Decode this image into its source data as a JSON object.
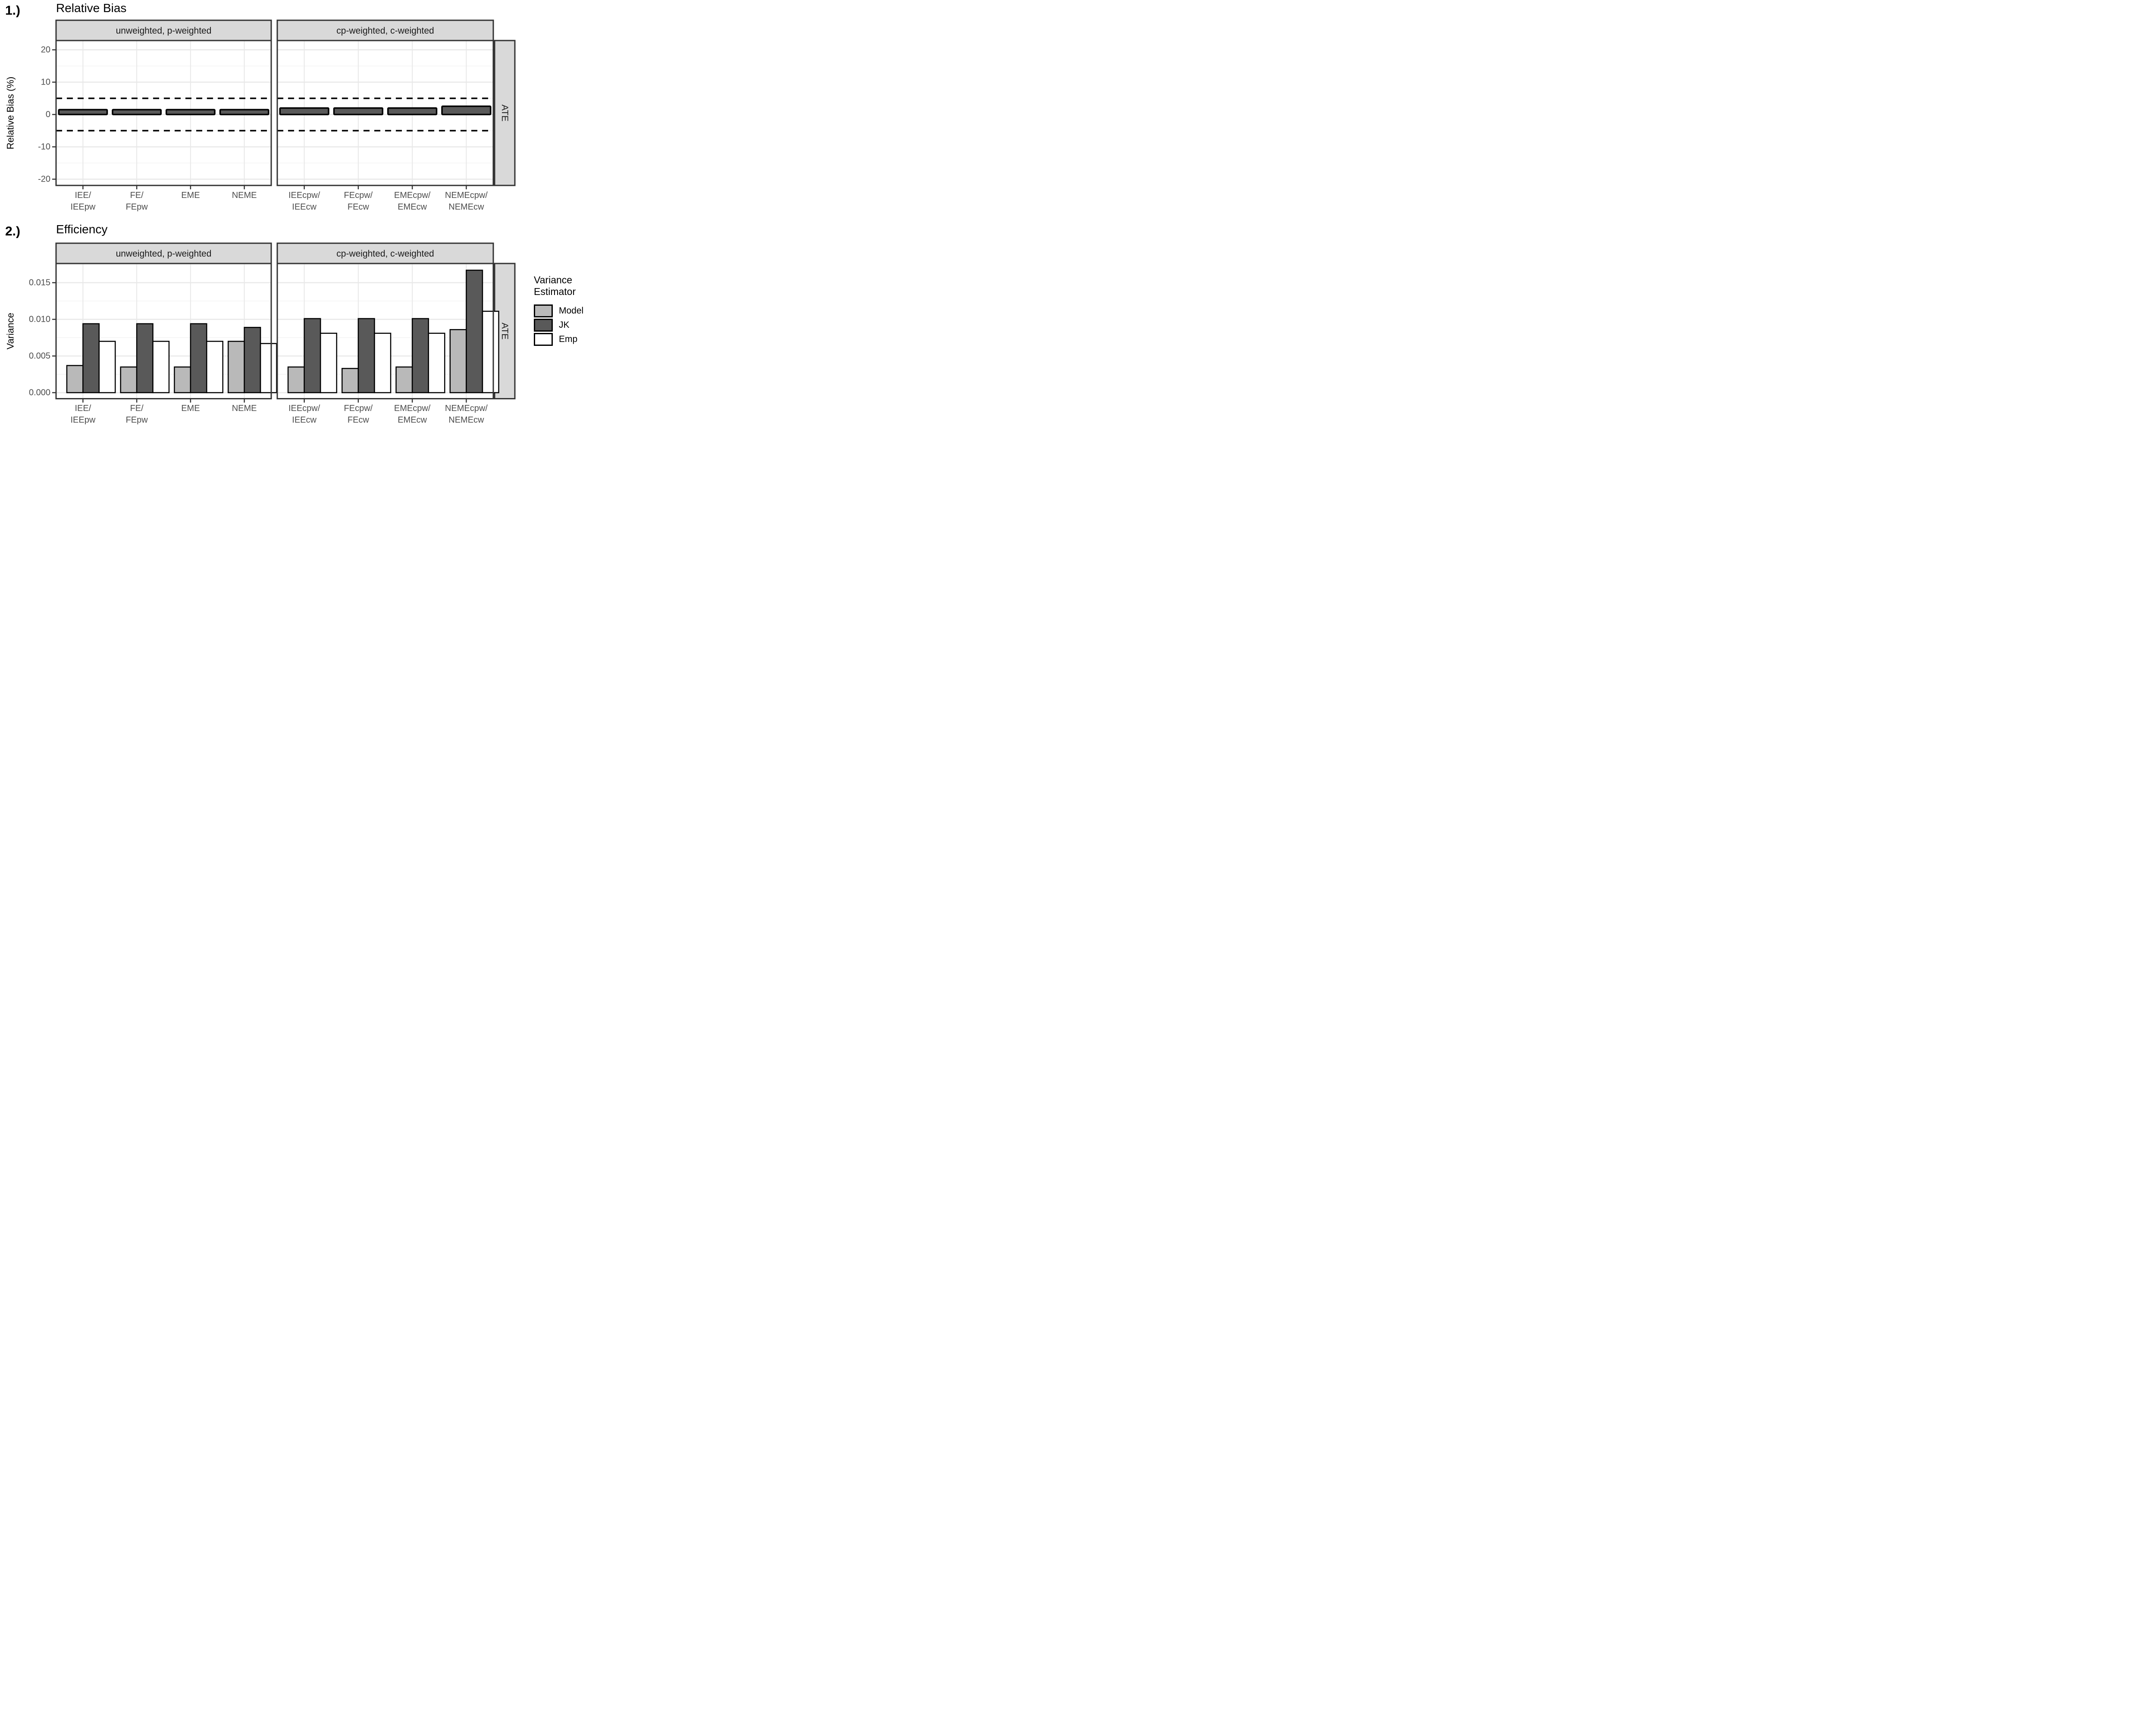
{
  "sections": [
    {
      "number_label": "1.)",
      "title": "Relative Bias"
    },
    {
      "number_label": "2.)",
      "title": "Efficiency"
    }
  ],
  "legend": {
    "title_lines": [
      "Variance",
      "Estimator"
    ],
    "items": [
      {
        "label": "Model",
        "color": "#b9b9b9"
      },
      {
        "label": "JK",
        "color": "#595959"
      },
      {
        "label": "Emp",
        "color": "#ffffff"
      }
    ]
  },
  "colors": {
    "strip_bg": "#d9d9d9",
    "border": "#333333",
    "grid_major": "#e8e8e8",
    "grid_minor": "#f3f3f3",
    "bar_outline": "#000000",
    "bar_dark": "#595959",
    "bar_light": "#b9b9b9",
    "bar_white": "#ffffff",
    "tick_text": "#4d4d4d",
    "ref_line": "#000000"
  },
  "chart_data": [
    {
      "type": "bar",
      "title": "Relative Bias",
      "xlabel": "",
      "ylabel": "Relative Bias (%)",
      "ylim": [
        -23,
        23
      ],
      "yticks": [
        -20,
        -10,
        0,
        10,
        20
      ],
      "ytick_labels": [
        "-20",
        "-10",
        "0",
        "10",
        "20"
      ],
      "minor_gridlines": [
        -15,
        -5,
        5,
        15
      ],
      "reference_lines": [
        5,
        -5
      ],
      "right_facet_label": "ATE",
      "grid": true,
      "legend_position": "none",
      "panels": [
        {
          "facet": "unweighted, p-weighted",
          "categories": [
            "IEE/IEEpw",
            "FE/FEpw",
            "EME",
            "NEME"
          ],
          "category_label_lines": [
            [
              "IEE/",
              "IEEpw"
            ],
            [
              "FE/",
              "FEpw"
            ],
            [
              "EME"
            ],
            [
              "NEME"
            ]
          ],
          "values": [
            1.5,
            1.5,
            1.5,
            1.5
          ]
        },
        {
          "facet": "cp-weighted, c-weighted",
          "categories": [
            "IEEcpw/IEEcw",
            "FEcpw/FEcw",
            "EMEcpw/EMEcw",
            "NEMEcpw/NEMEcw"
          ],
          "category_label_lines": [
            [
              "IEEcpw/",
              "IEEcw"
            ],
            [
              "FEcpw/",
              "FEcw"
            ],
            [
              "EMEcpw/",
              "EMEcw"
            ],
            [
              "NEMEcpw/",
              "NEMEcw"
            ]
          ],
          "values": [
            2.0,
            2.0,
            2.0,
            2.55
          ]
        }
      ]
    },
    {
      "type": "grouped_bar",
      "title": "Efficiency",
      "xlabel": "",
      "ylabel": "Variance",
      "ylim": [
        0,
        0.0176
      ],
      "yticks": [
        0,
        0.005,
        0.01,
        0.015
      ],
      "ytick_labels": [
        "0.000",
        "0.005",
        "0.010",
        "0.015"
      ],
      "minor_gridlines": [
        0.0025,
        0.0075,
        0.0125,
        0.0175
      ],
      "reference_lines": [],
      "right_facet_label": "ATE",
      "grid": true,
      "legend_position": "right",
      "series_names": [
        "Model",
        "JK",
        "Emp"
      ],
      "series_colors": [
        "#b9b9b9",
        "#595959",
        "#ffffff"
      ],
      "panels": [
        {
          "facet": "unweighted, p-weighted",
          "categories": [
            "IEE/IEEpw",
            "FE/FEpw",
            "EME",
            "NEME"
          ],
          "category_label_lines": [
            [
              "IEE/",
              "IEEpw"
            ],
            [
              "FE/",
              "FEpw"
            ],
            [
              "EME"
            ],
            [
              "NEME"
            ]
          ],
          "series": [
            {
              "name": "Model",
              "values": [
                0.0037,
                0.0035,
                0.0035,
                0.007
              ]
            },
            {
              "name": "JK",
              "values": [
                0.0094,
                0.0094,
                0.0094,
                0.0089
              ]
            },
            {
              "name": "Emp",
              "values": [
                0.007,
                0.007,
                0.007,
                0.0067
              ]
            }
          ]
        },
        {
          "facet": "cp-weighted, c-weighted",
          "categories": [
            "IEEcpw/IEEcw",
            "FEcpw/FEcw",
            "EMEcpw/EMEcw",
            "NEMEcpw/NEMEcw"
          ],
          "category_label_lines": [
            [
              "IEEcpw/",
              "IEEcw"
            ],
            [
              "FEcpw/",
              "FEcw"
            ],
            [
              "EMEcpw/",
              "EMEcw"
            ],
            [
              "NEMEcpw/",
              "NEMEcw"
            ]
          ],
          "series": [
            {
              "name": "Model",
              "values": [
                0.0035,
                0.0033,
                0.0035,
                0.0086
              ]
            },
            {
              "name": "JK",
              "values": [
                0.0101,
                0.0101,
                0.0101,
                0.0167
              ]
            },
            {
              "name": "Emp",
              "values": [
                0.0081,
                0.0081,
                0.0081,
                0.0111
              ]
            }
          ]
        }
      ]
    }
  ]
}
